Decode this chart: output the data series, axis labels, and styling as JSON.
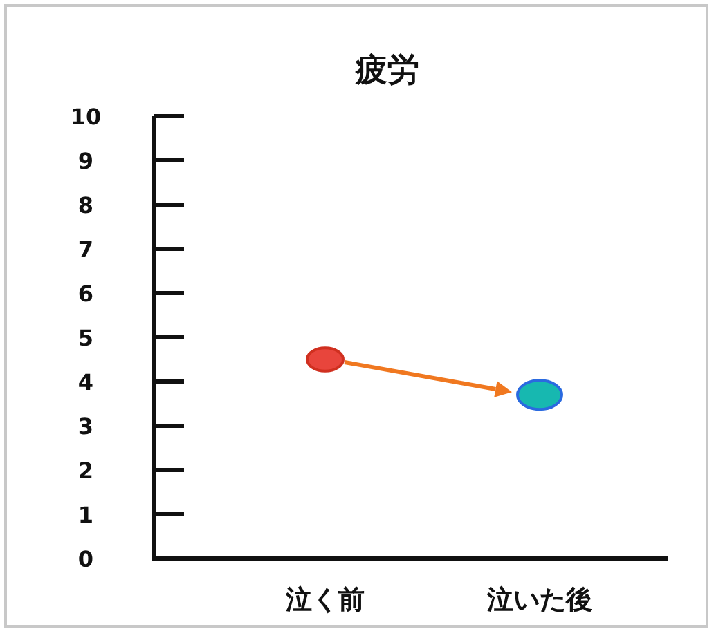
{
  "chart_data": {
    "type": "scatter",
    "title": "疲労",
    "categories": [
      "泣く前",
      "泣いた後"
    ],
    "values": [
      4.5,
      3.7
    ],
    "colors": [
      "#e8453c",
      "#17b8b0"
    ],
    "ylim": [
      0,
      10
    ],
    "yticks": [
      0,
      1,
      2,
      3,
      4,
      5,
      6,
      7,
      8,
      9,
      10
    ],
    "marker": "circle"
  }
}
